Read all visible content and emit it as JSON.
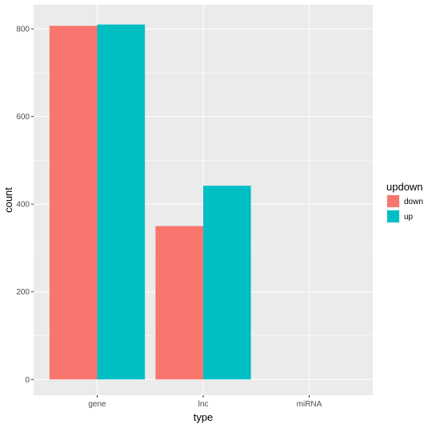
{
  "chart_data": {
    "type": "bar",
    "categories": [
      "gene",
      "lnc",
      "miRNA"
    ],
    "series": [
      {
        "name": "down",
        "values": [
          807,
          350,
          0
        ],
        "color": "#F8766D"
      },
      {
        "name": "up",
        "values": [
          810,
          442,
          0
        ],
        "color": "#00BFC4"
      }
    ],
    "xlabel": "type",
    "ylabel": "count",
    "ylim": [
      -36,
      855
    ],
    "yticks": [
      0,
      200,
      400,
      600,
      800
    ],
    "legend": {
      "title": "updown",
      "position": "right"
    },
    "grid": true,
    "panel_background": "#EBEBEB",
    "grid_color": "#FFFFFF"
  }
}
